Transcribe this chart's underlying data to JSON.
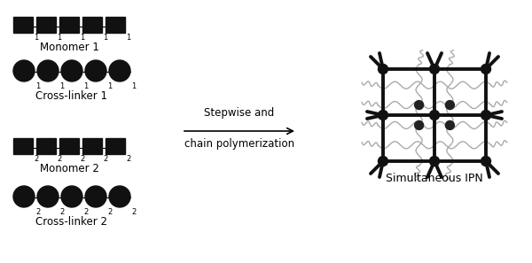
{
  "bg_color": "#ffffff",
  "text_color": "#000000",
  "monomer1_label": "Monomer 1",
  "crosslinker1_label": "Cross-linker 1",
  "monomer2_label": "Monomer 2",
  "crosslinker2_label": "Cross-linker 2",
  "arrow_label_line1": "Stepwise and",
  "arrow_label_line2": "chain polymerization",
  "ipn_label": "Simultaneous IPN",
  "square_color": "#111111",
  "circle_color": "#111111",
  "subscript1": "1",
  "subscript2": "2",
  "grey_color": "#aaaaaa",
  "net_color": "#111111"
}
